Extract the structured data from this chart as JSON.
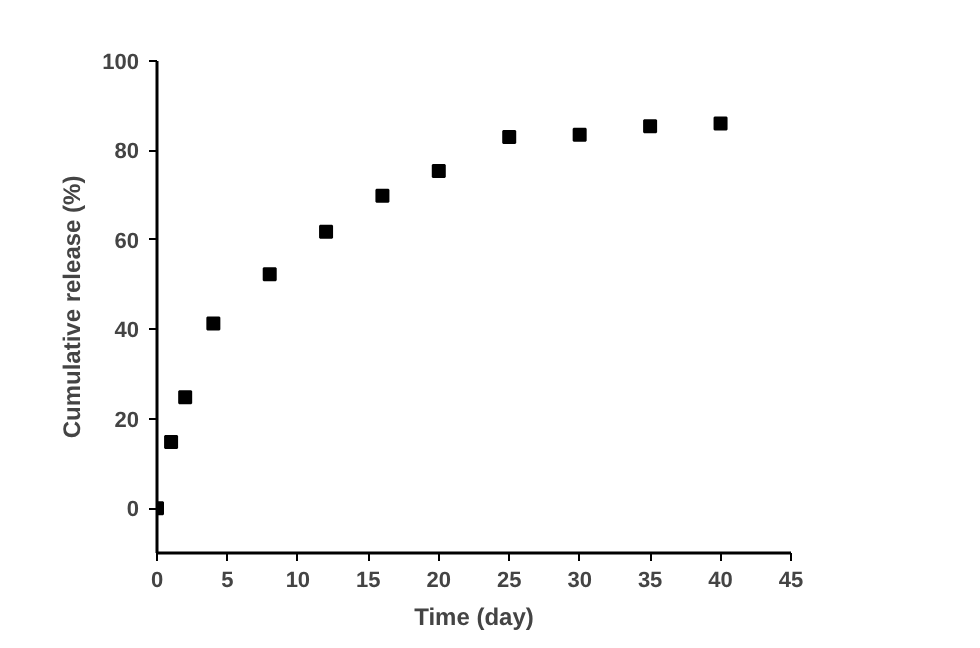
{
  "chart_data": {
    "type": "scatter",
    "xlabel": "Time (day)",
    "ylabel": "Cumulative release (%)",
    "x": [
      0,
      1,
      2,
      4,
      8,
      12,
      16,
      20,
      25,
      30,
      35,
      40
    ],
    "series": [
      {
        "color": "#000000",
        "values": [
          0,
          14.8,
          24.8,
          41.3,
          52.3,
          61.8,
          69.9,
          75.4,
          83.0,
          83.5,
          85.4,
          86.0
        ]
      }
    ],
    "xlim": [
      0,
      45
    ],
    "ylim": [
      -10,
      100
    ],
    "xticks": [
      0,
      5,
      10,
      15,
      20,
      25,
      30,
      35,
      40,
      45
    ],
    "yticks": [
      0,
      20,
      40,
      60,
      80,
      100
    ],
    "marker": "square"
  }
}
